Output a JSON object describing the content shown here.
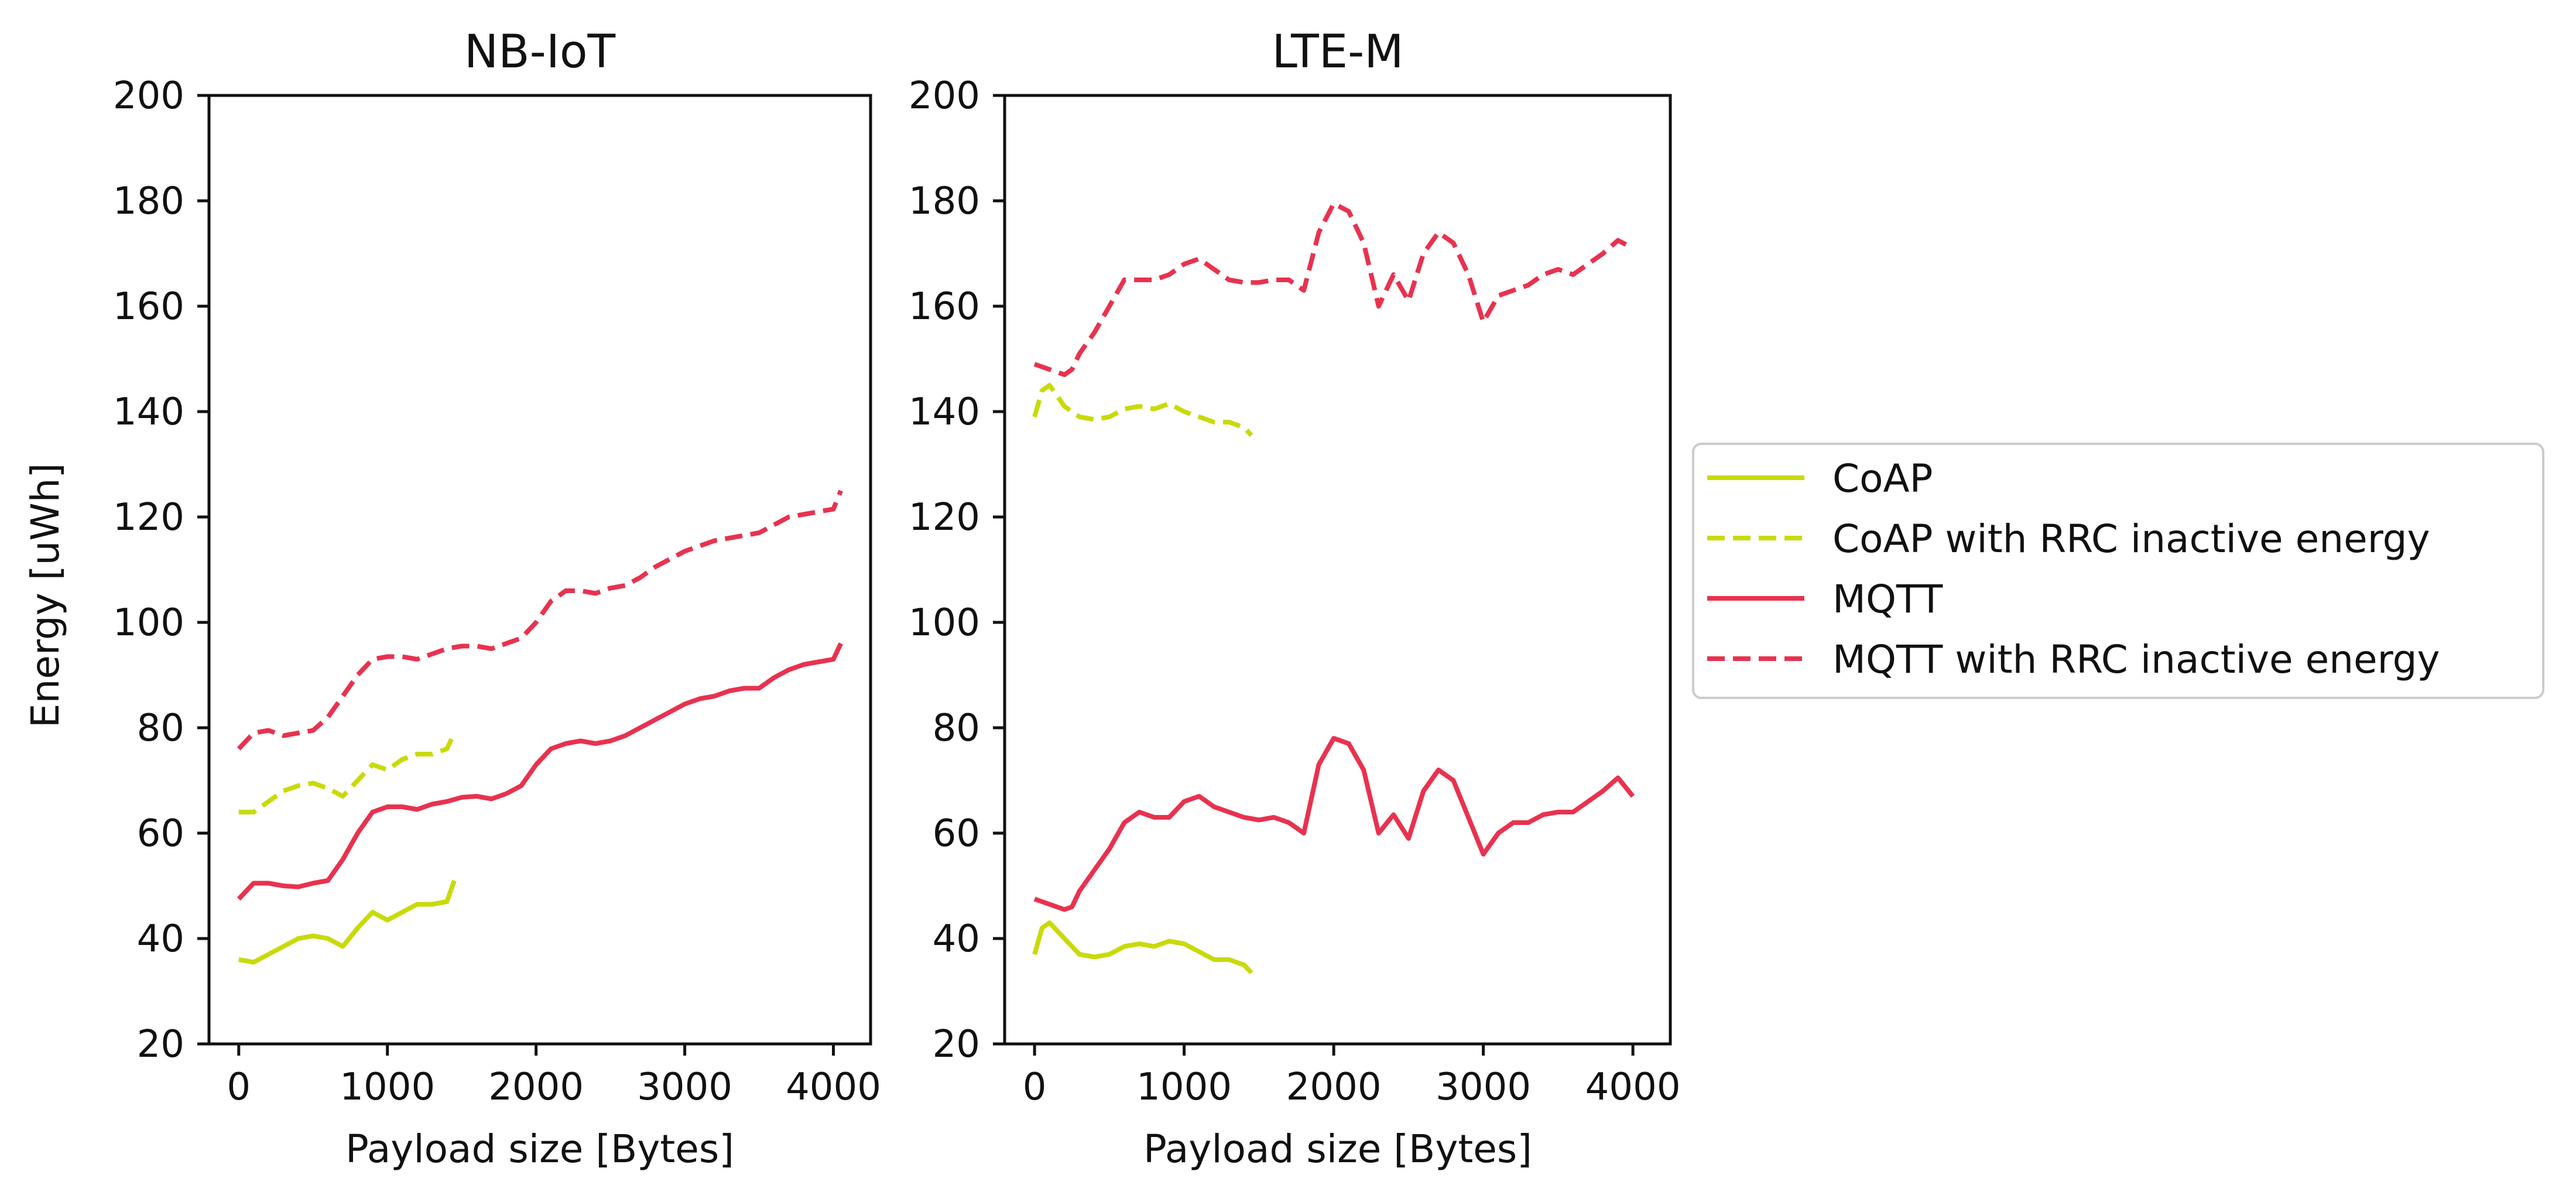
{
  "colors": {
    "coap": "#c9da0a",
    "mqtt": "#e8324f",
    "axis": "#111111"
  },
  "legend": {
    "placement": "right",
    "entries": [
      {
        "label": "CoAP",
        "style": "solid",
        "color_key": "coap"
      },
      {
        "label": "CoAP with RRC inactive energy",
        "style": "dashed",
        "color_key": "coap"
      },
      {
        "label": "MQTT",
        "style": "solid",
        "color_key": "mqtt"
      },
      {
        "label": "MQTT with RRC inactive energy",
        "style": "dashed",
        "color_key": "mqtt"
      }
    ]
  },
  "chart_data": [
    {
      "type": "line",
      "title": "NB-IoT",
      "xlabel": "Payload size [Bytes]",
      "ylabel": "Energy [uWh]",
      "xlim": [
        -200,
        4250
      ],
      "ylim": [
        20,
        200
      ],
      "xticks": [
        0,
        1000,
        2000,
        3000,
        4000
      ],
      "yticks": [
        20,
        40,
        60,
        80,
        100,
        120,
        140,
        160,
        180,
        200
      ],
      "grid": false,
      "series": [
        {
          "name": "CoAP",
          "style": "solid",
          "color_key": "coap",
          "x": [
            0,
            100,
            200,
            300,
            400,
            500,
            600,
            700,
            800,
            900,
            1000,
            1100,
            1200,
            1300,
            1400,
            1450
          ],
          "y": [
            36,
            35.5,
            37,
            38.5,
            40,
            40.5,
            40,
            38.5,
            42,
            45,
            43.5,
            45,
            46.5,
            46.5,
            47,
            51
          ]
        },
        {
          "name": "CoAP with RRC inactive energy",
          "style": "dashed",
          "color_key": "coap",
          "x": [
            0,
            100,
            200,
            300,
            400,
            500,
            600,
            700,
            800,
            900,
            1000,
            1100,
            1200,
            1300,
            1400,
            1450
          ],
          "y": [
            64,
            64,
            66,
            68,
            69,
            69.5,
            68.5,
            67,
            70,
            73,
            72,
            74,
            75,
            75,
            76,
            79
          ]
        },
        {
          "name": "MQTT",
          "style": "solid",
          "color_key": "mqtt",
          "x": [
            0,
            100,
            200,
            300,
            400,
            500,
            600,
            700,
            800,
            900,
            1000,
            1100,
            1200,
            1300,
            1400,
            1500,
            1600,
            1700,
            1800,
            1900,
            2000,
            2100,
            2200,
            2300,
            2400,
            2500,
            2600,
            2700,
            2800,
            2900,
            3000,
            3100,
            3200,
            3300,
            3400,
            3500,
            3600,
            3700,
            3800,
            3900,
            4000,
            4050
          ],
          "y": [
            47.5,
            50.5,
            50.5,
            50,
            49.8,
            50.5,
            51,
            55,
            60,
            64,
            65,
            65,
            64.5,
            65.5,
            66,
            66.8,
            67,
            66.5,
            67.5,
            69,
            73,
            76,
            77,
            77.5,
            77,
            77.5,
            78.5,
            80,
            81.5,
            83,
            84.5,
            85.5,
            86,
            87,
            87.5,
            87.5,
            89.5,
            91,
            92,
            92.5,
            93,
            96
          ]
        },
        {
          "name": "MQTT with RRC inactive energy",
          "style": "dashed",
          "color_key": "mqtt",
          "x": [
            0,
            100,
            200,
            300,
            400,
            500,
            600,
            700,
            800,
            900,
            1000,
            1100,
            1200,
            1300,
            1400,
            1500,
            1600,
            1700,
            1800,
            1900,
            2000,
            2100,
            2200,
            2300,
            2400,
            2500,
            2600,
            2700,
            2800,
            2900,
            3000,
            3100,
            3200,
            3300,
            3400,
            3500,
            3600,
            3700,
            3800,
            3900,
            4000,
            4050
          ],
          "y": [
            76,
            79,
            79.5,
            78.5,
            79,
            79.5,
            82,
            86,
            90,
            93,
            93.5,
            93.5,
            93,
            94,
            95,
            95.5,
            95.5,
            95,
            96,
            97,
            100,
            104,
            106,
            106,
            105.5,
            106.5,
            107,
            108.5,
            110.5,
            112,
            113.5,
            114.5,
            115.5,
            116,
            116.5,
            117,
            118.5,
            120,
            120.5,
            121,
            121.5,
            125
          ]
        }
      ]
    },
    {
      "type": "line",
      "title": "LTE-M",
      "xlabel": "Payload size [Bytes]",
      "ylabel": "",
      "xlim": [
        -200,
        4250
      ],
      "ylim": [
        20,
        200
      ],
      "xticks": [
        0,
        1000,
        2000,
        3000,
        4000
      ],
      "yticks": [
        20,
        40,
        60,
        80,
        100,
        120,
        140,
        160,
        180,
        200
      ],
      "grid": false,
      "series": [
        {
          "name": "CoAP",
          "style": "solid",
          "color_key": "coap",
          "x": [
            0,
            50,
            100,
            200,
            300,
            400,
            500,
            600,
            700,
            800,
            900,
            1000,
            1100,
            1200,
            1300,
            1400,
            1450
          ],
          "y": [
            37,
            42,
            43,
            40,
            37,
            36.5,
            37,
            38.5,
            39,
            38.5,
            39.5,
            39,
            37.5,
            36,
            36,
            35,
            33.5
          ]
        },
        {
          "name": "CoAP with RRC inactive energy",
          "style": "dashed",
          "color_key": "coap",
          "x": [
            0,
            50,
            100,
            200,
            300,
            400,
            500,
            600,
            700,
            800,
            900,
            1000,
            1100,
            1200,
            1300,
            1400,
            1450
          ],
          "y": [
            139,
            144,
            145,
            141,
            139,
            138.5,
            139,
            140.5,
            141,
            140.5,
            141.5,
            140,
            139,
            138,
            138,
            137,
            135.5
          ]
        },
        {
          "name": "MQTT",
          "style": "solid",
          "color_key": "mqtt",
          "x": [
            0,
            100,
            200,
            250,
            300,
            400,
            500,
            600,
            700,
            800,
            900,
            1000,
            1100,
            1200,
            1300,
            1400,
            1500,
            1600,
            1700,
            1800,
            1900,
            2000,
            2100,
            2200,
            2300,
            2400,
            2500,
            2600,
            2700,
            2800,
            2900,
            3000,
            3100,
            3200,
            3300,
            3400,
            3500,
            3600,
            3700,
            3800,
            3900,
            4000
          ],
          "y": [
            47.5,
            46.5,
            45.5,
            46,
            49,
            53,
            57,
            62,
            64,
            63,
            63,
            66,
            67,
            65,
            64,
            63,
            62.5,
            63,
            62,
            60,
            73,
            78,
            77,
            72,
            60,
            63.5,
            59,
            68,
            72,
            70,
            63,
            56,
            60,
            62,
            62,
            63.5,
            64,
            64,
            66,
            68,
            70.5,
            67
          ]
        },
        {
          "name": "MQTT with RRC inactive energy",
          "style": "dashed",
          "color_key": "mqtt",
          "x": [
            0,
            100,
            200,
            250,
            300,
            400,
            500,
            600,
            700,
            800,
            900,
            1000,
            1100,
            1200,
            1300,
            1400,
            1500,
            1600,
            1700,
            1800,
            1900,
            2000,
            2100,
            2200,
            2300,
            2400,
            2500,
            2600,
            2700,
            2800,
            2900,
            3000,
            3100,
            3200,
            3300,
            3400,
            3500,
            3600,
            3700,
            3800,
            3900,
            4000
          ],
          "y": [
            149,
            148,
            147,
            148,
            151,
            155,
            160,
            165,
            165,
            165,
            166,
            168,
            169,
            167,
            165,
            164.5,
            164.5,
            165,
            165,
            163,
            174,
            179.5,
            178,
            172,
            160,
            166,
            161,
            170,
            174,
            172,
            166,
            157,
            162,
            163,
            164,
            166,
            167,
            166,
            168,
            170,
            172.5,
            171
          ]
        }
      ]
    }
  ]
}
